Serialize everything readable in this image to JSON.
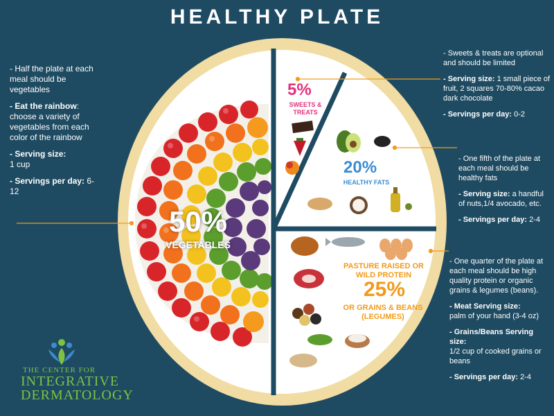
{
  "title": "HEALTHY PLATE",
  "vegetables": {
    "percent": "50%",
    "label": "VEGETABLES"
  },
  "sweets": {
    "percent": "5%",
    "label": "SWEETS & TREATS"
  },
  "fats": {
    "percent": "20%",
    "label": "HEALTHY FATS"
  },
  "protein": {
    "label_top": "PASTURE RAISED OR WILD PROTEIN",
    "percent": "25%",
    "label_bottom": "OR GRAINS & BEANS (LEGUMES)"
  },
  "left_notes": {
    "line1": "- Half the plate at each meal should be vegetables",
    "rainbow_title": "- Eat the rainbow",
    "rainbow_text": ": choose a variety of vegetables from each color of the rainbow",
    "serving_title": "- Serving size:",
    "serving_value": "1 cup",
    "per_day_title": "- Servings per day:",
    "per_day_value": " 6-12"
  },
  "right_sweets": {
    "line1": "- Sweets & treats are optional and should be limited",
    "serving_title": "- Serving size:",
    "serving_value": " 1 small piece of fruit, 2 squares 70-80% cacao dark chocolate",
    "per_day_title": "- Servings per day:",
    "per_day_value": " 0-2"
  },
  "right_fats": {
    "line1": "- One fifth of the plate at each meal should be healthy fats",
    "serving_title": "- Serving size:",
    "serving_value": " a handful of nuts,1/4 avocado, etc.",
    "per_day_title": "- Servings per day:",
    "per_day_value": " 2-4"
  },
  "right_protein": {
    "line1": "- One quarter of the plate at each meal should be high quality protein or organic grains & legumes (beans).",
    "meat_title": "- Meat Serving size:",
    "meat_value": "palm of your hand (3-4 oz)",
    "grains_title": "- Grains/Beans Serving size:",
    "grains_value": "1/2 cup of cooked grains or beans",
    "per_day_title": "- Servings per day:",
    "per_day_value": " 2-4"
  },
  "logo": {
    "line1": "THE CENTER FOR",
    "line2": "INTEGRATIVE",
    "line3": "DERMATOLOGY"
  },
  "colors": {
    "background": "#1f4b62",
    "plate_rim": "#f1dca4",
    "divider": "#1f4b62",
    "sweets": "#e0337c",
    "fats": "#3b8ccf",
    "protein": "#f29a1a",
    "leader": "#f29a1a",
    "logo": "#7fc241"
  }
}
